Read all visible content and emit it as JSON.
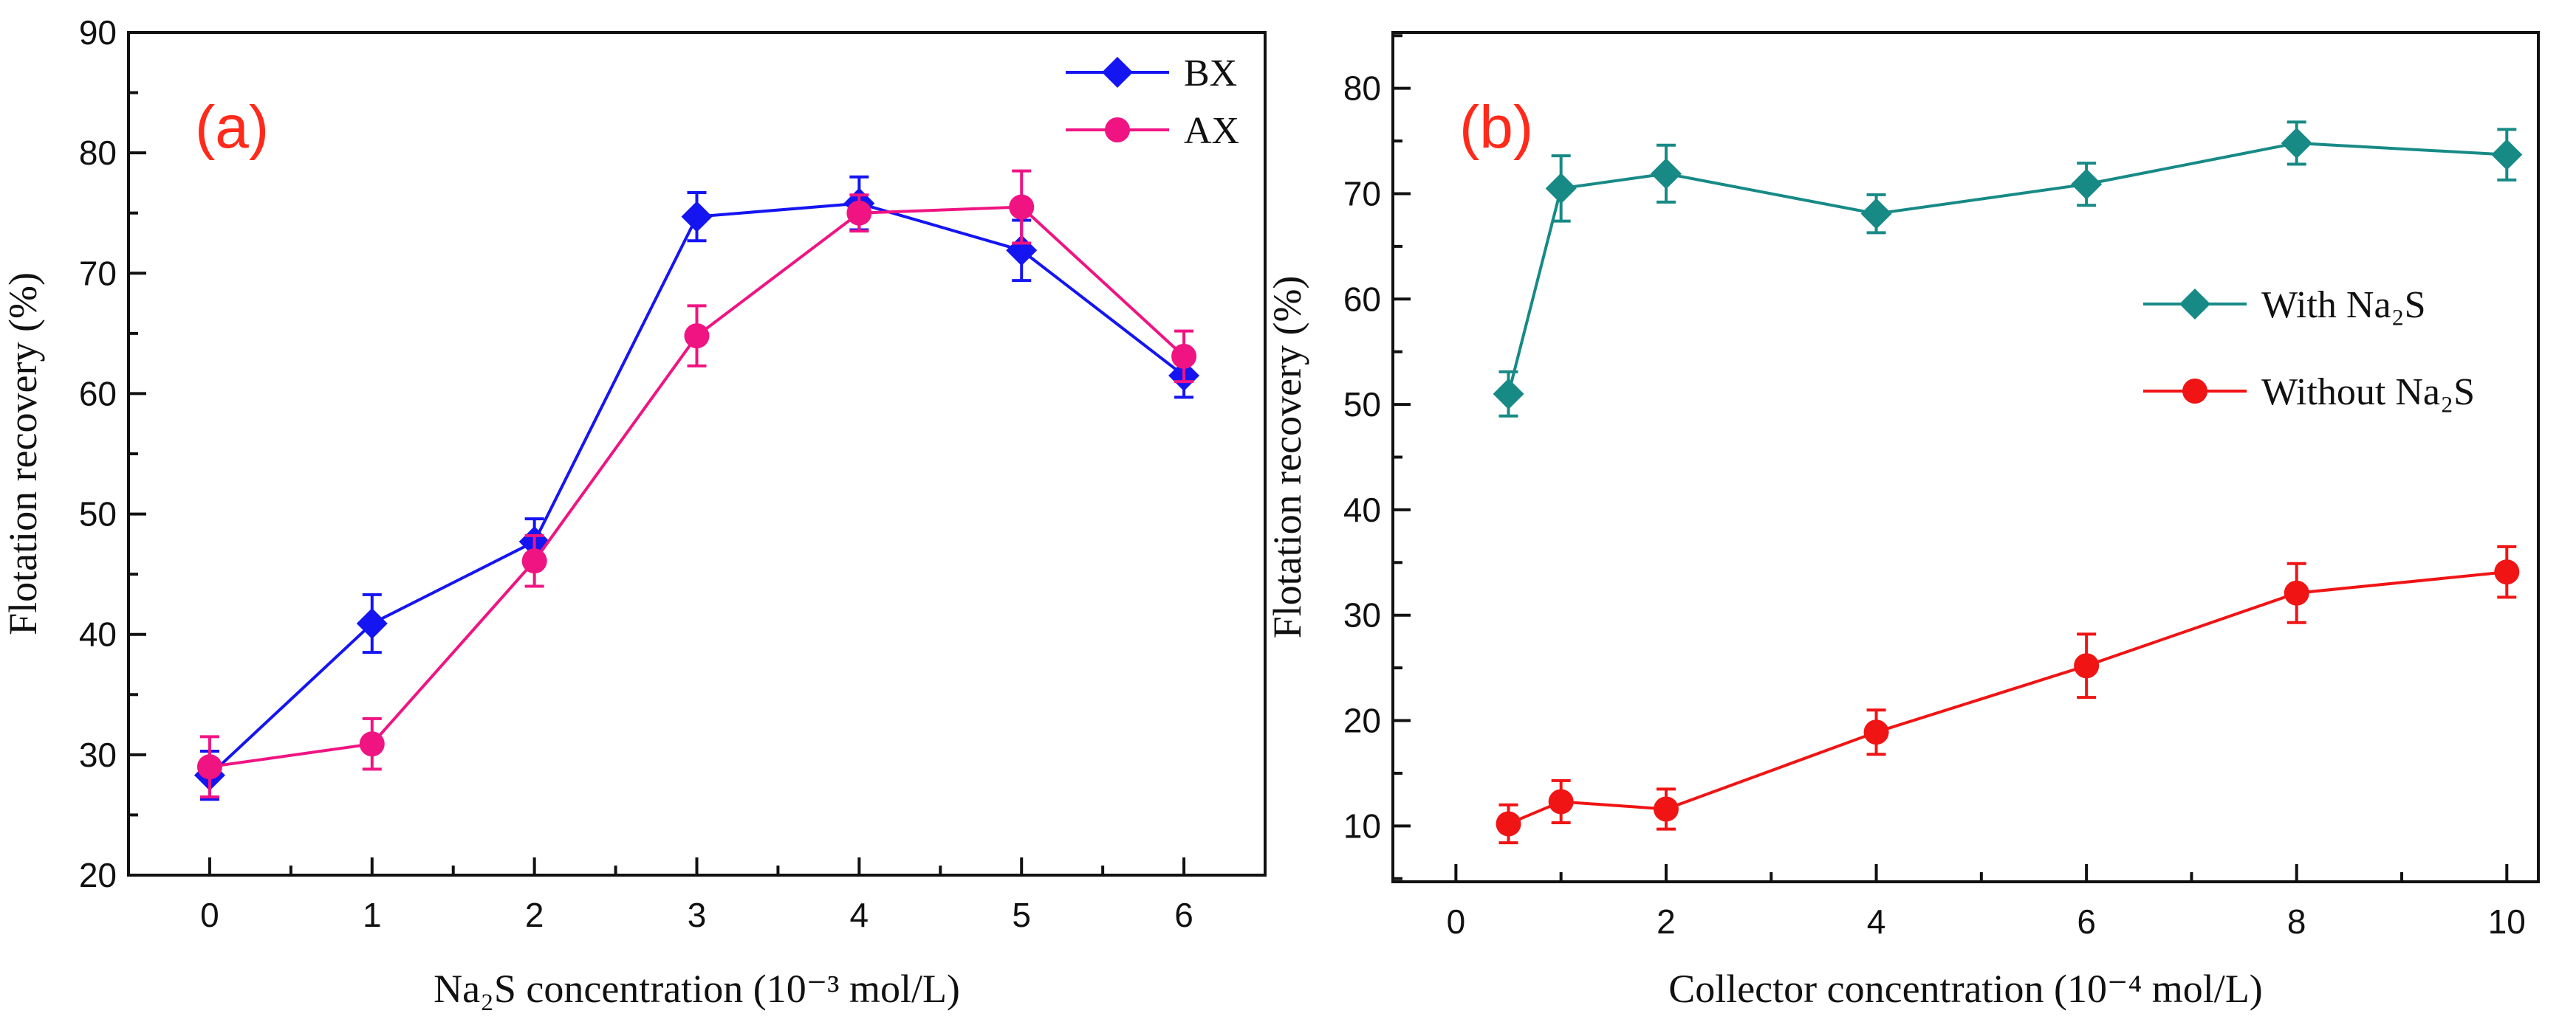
{
  "chart_data": [
    {
      "type": "line",
      "panel_label": "(a)",
      "panel_label_color": "#ff2a1a",
      "xlabel": "Na₂S concentration (10⁻³ mol/L)",
      "ylabel": "Flotation recovery (%)",
      "xlim": [
        -0.5,
        6.5
      ],
      "ylim": [
        20,
        90
      ],
      "xticks": [
        0,
        1,
        2,
        3,
        4,
        5,
        6
      ],
      "xminor": [
        0.5,
        1.5,
        2.5,
        3.5,
        4.5,
        5.5
      ],
      "yticks": [
        20,
        30,
        40,
        50,
        60,
        70,
        80,
        90
      ],
      "yminor": [
        25,
        35,
        45,
        55,
        65,
        75,
        85
      ],
      "legend_position": "top-right",
      "grid": false,
      "x": [
        0,
        1,
        2,
        3,
        4,
        5,
        6
      ],
      "series": [
        {
          "name": "BX",
          "marker": "diamond",
          "color": "#1515f2",
          "values": [
            28.3,
            40.9,
            47.7,
            74.7,
            75.8,
            71.9,
            61.5
          ],
          "errors": [
            2.0,
            2.4,
            1.9,
            2.0,
            2.2,
            2.5,
            1.8
          ]
        },
        {
          "name": "AX",
          "marker": "circle",
          "color": "#f01482",
          "values": [
            29.0,
            30.9,
            46.1,
            64.8,
            75.0,
            75.5,
            63.1
          ],
          "errors": [
            2.5,
            2.1,
            2.1,
            2.5,
            1.5,
            3.0,
            2.1
          ]
        }
      ]
    },
    {
      "type": "line",
      "panel_label": "(b)",
      "panel_label_color": "#ff2a1a",
      "xlabel": "Collector concentration   (10⁻⁴ mol/L)",
      "ylabel": "Flotation recovery (%)",
      "xlim": [
        -0.6,
        10.3
      ],
      "ylim": [
        4.7,
        85.3
      ],
      "xticks": [
        0,
        2,
        4,
        6,
        8,
        10
      ],
      "xminor": [
        1,
        3,
        5,
        7,
        9
      ],
      "yticks": [
        10,
        20,
        30,
        40,
        50,
        60,
        70,
        80
      ],
      "yminor": [
        5,
        15,
        25,
        35,
        45,
        55,
        65,
        75,
        85
      ],
      "legend_position": "center-right",
      "grid": false,
      "x": [
        0.5,
        1,
        2,
        4,
        6,
        8,
        10
      ],
      "series": [
        {
          "name": "With Na₂S",
          "marker": "diamond",
          "color": "#178a86",
          "values": [
            51.0,
            70.5,
            71.9,
            68.1,
            70.9,
            74.8,
            73.7
          ],
          "errors": [
            2.1,
            3.1,
            2.7,
            1.8,
            2.0,
            2.0,
            2.4
          ]
        },
        {
          "name": "Without Na₂S",
          "marker": "circle",
          "color": "#f01414",
          "values": [
            10.2,
            12.3,
            11.6,
            18.9,
            25.2,
            32.1,
            34.1
          ],
          "errors": [
            1.8,
            2.0,
            1.9,
            2.1,
            3.0,
            2.8,
            2.4
          ]
        }
      ]
    }
  ]
}
